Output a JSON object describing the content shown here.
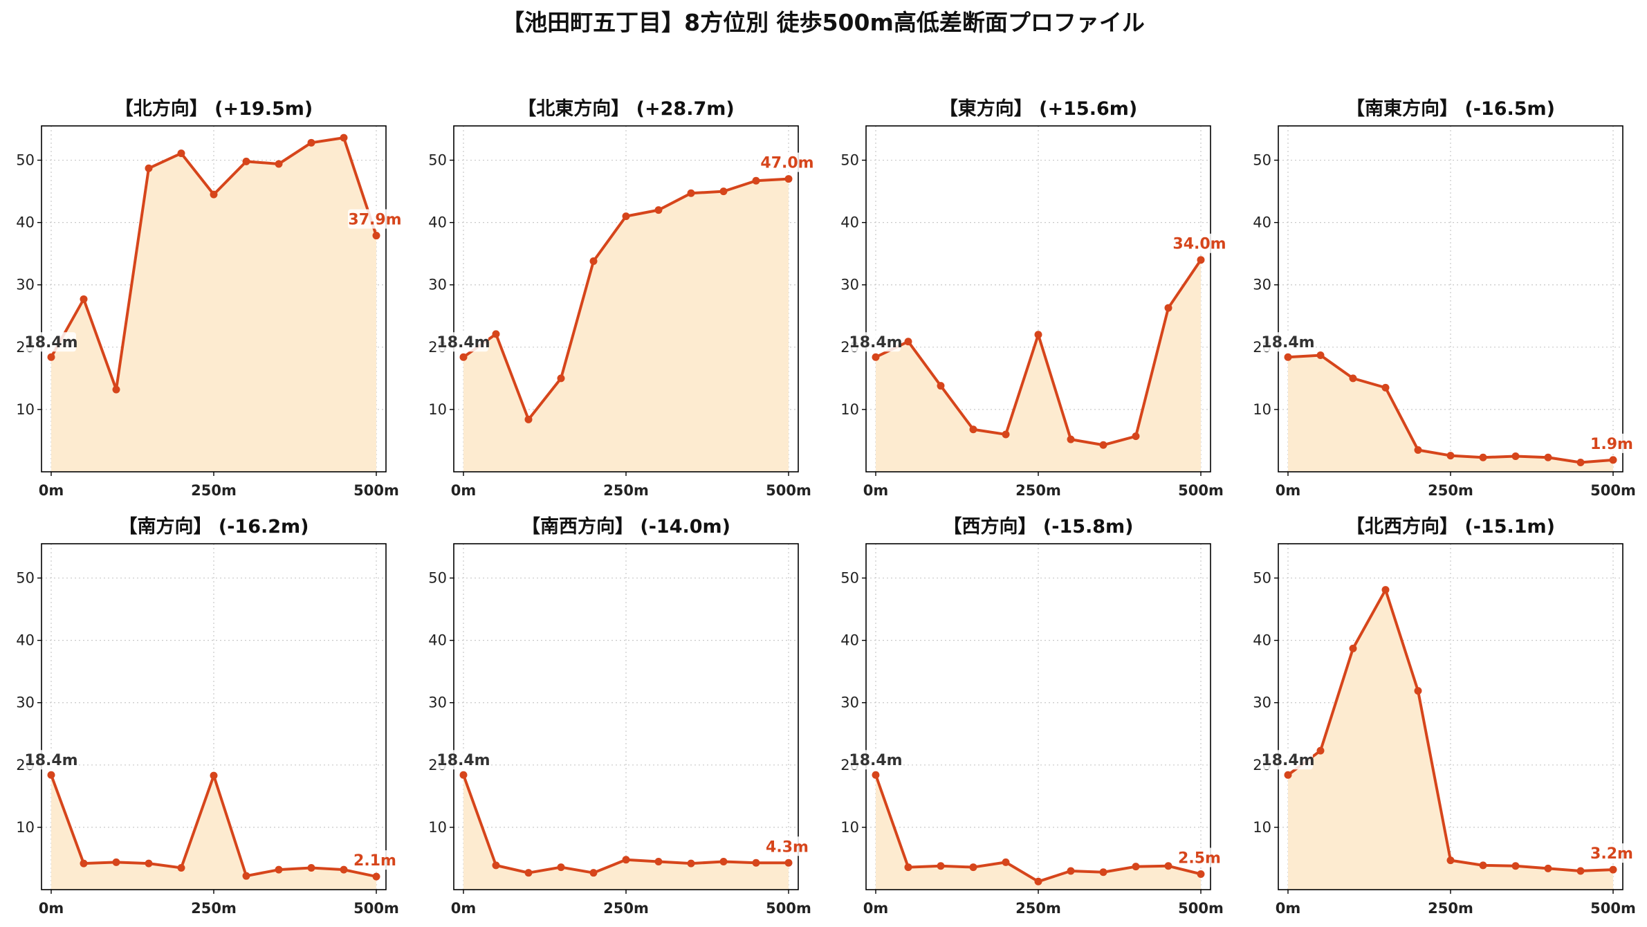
{
  "figure_title": "【池田町五丁目】8方位別 徒歩500m高低差断面プロファイル",
  "colors": {
    "line": "#d6451b",
    "fill": "#fdebd0",
    "grid": "#c8c8c8",
    "axis": "#000000",
    "start_label": "#333333",
    "end_label": "#d6451b"
  },
  "chart_data": [
    {
      "type": "area",
      "title": "【北方向】 (+19.5m)",
      "x": [
        0,
        50,
        100,
        150,
        200,
        250,
        300,
        350,
        400,
        450,
        500
      ],
      "values": [
        18.4,
        27.7,
        13.2,
        48.7,
        51.1,
        44.5,
        49.8,
        49.4,
        52.8,
        53.6,
        37.9
      ],
      "start_label": "18.4m",
      "end_label": "37.9m",
      "xticks": [
        0,
        250,
        500
      ],
      "xtick_labels": [
        "0m",
        "250m",
        "500m"
      ],
      "yticks": [
        10,
        20,
        30,
        40,
        50
      ],
      "ylim": [
        0,
        55.5
      ],
      "grid": true
    },
    {
      "type": "area",
      "title": "【北東方向】 (+28.7m)",
      "x": [
        0,
        50,
        100,
        150,
        200,
        250,
        300,
        350,
        400,
        450,
        500
      ],
      "values": [
        18.4,
        22.1,
        8.4,
        15.0,
        33.8,
        41.0,
        42.0,
        44.7,
        45.0,
        46.7,
        47.0
      ],
      "start_label": "18.4m",
      "end_label": "47.0m",
      "xticks": [
        0,
        250,
        500
      ],
      "xtick_labels": [
        "0m",
        "250m",
        "500m"
      ],
      "yticks": [
        10,
        20,
        30,
        40,
        50
      ],
      "ylim": [
        0,
        55.5
      ],
      "grid": true
    },
    {
      "type": "area",
      "title": "【東方向】 (+15.6m)",
      "x": [
        0,
        50,
        100,
        150,
        200,
        250,
        300,
        350,
        400,
        450,
        500
      ],
      "values": [
        18.4,
        20.9,
        13.8,
        6.8,
        6.0,
        22.0,
        5.2,
        4.3,
        5.7,
        26.3,
        34.0
      ],
      "start_label": "18.4m",
      "end_label": "34.0m",
      "xticks": [
        0,
        250,
        500
      ],
      "xtick_labels": [
        "0m",
        "250m",
        "500m"
      ],
      "yticks": [
        10,
        20,
        30,
        40,
        50
      ],
      "ylim": [
        0,
        55.5
      ],
      "grid": true
    },
    {
      "type": "area",
      "title": "【南東方向】 (-16.5m)",
      "x": [
        0,
        50,
        100,
        150,
        200,
        250,
        300,
        350,
        400,
        450,
        500
      ],
      "values": [
        18.4,
        18.7,
        15.0,
        13.5,
        3.5,
        2.6,
        2.3,
        2.5,
        2.3,
        1.5,
        1.9
      ],
      "start_label": "18.4m",
      "end_label": "1.9m",
      "xticks": [
        0,
        250,
        500
      ],
      "xtick_labels": [
        "0m",
        "250m",
        "500m"
      ],
      "yticks": [
        10,
        20,
        30,
        40,
        50
      ],
      "ylim": [
        0,
        55.5
      ],
      "grid": true
    },
    {
      "type": "area",
      "title": "【南方向】 (-16.2m)",
      "x": [
        0,
        50,
        100,
        150,
        200,
        250,
        300,
        350,
        400,
        450,
        500
      ],
      "values": [
        18.4,
        4.2,
        4.4,
        4.2,
        3.5,
        18.3,
        2.2,
        3.2,
        3.5,
        3.2,
        2.1
      ],
      "start_label": "18.4m",
      "end_label": "2.1m",
      "xticks": [
        0,
        250,
        500
      ],
      "xtick_labels": [
        "0m",
        "250m",
        "500m"
      ],
      "yticks": [
        10,
        20,
        30,
        40,
        50
      ],
      "ylim": [
        0,
        55.5
      ],
      "grid": true
    },
    {
      "type": "area",
      "title": "【南西方向】 (-14.0m)",
      "x": [
        0,
        50,
        100,
        150,
        200,
        250,
        300,
        350,
        400,
        450,
        500
      ],
      "values": [
        18.4,
        3.9,
        2.7,
        3.6,
        2.7,
        4.8,
        4.5,
        4.2,
        4.5,
        4.3,
        4.3
      ],
      "start_label": "18.4m",
      "end_label": "4.3m",
      "xticks": [
        0,
        250,
        500
      ],
      "xtick_labels": [
        "0m",
        "250m",
        "500m"
      ],
      "yticks": [
        10,
        20,
        30,
        40,
        50
      ],
      "ylim": [
        0,
        55.5
      ],
      "grid": true
    },
    {
      "type": "area",
      "title": "【西方向】 (-15.8m)",
      "x": [
        0,
        50,
        100,
        150,
        200,
        250,
        300,
        350,
        400,
        450,
        500
      ],
      "values": [
        18.4,
        3.6,
        3.8,
        3.6,
        4.4,
        1.3,
        3.0,
        2.8,
        3.7,
        3.8,
        2.5
      ],
      "start_label": "18.4m",
      "end_label": "2.5m",
      "xticks": [
        0,
        250,
        500
      ],
      "xtick_labels": [
        "0m",
        "250m",
        "500m"
      ],
      "yticks": [
        10,
        20,
        30,
        40,
        50
      ],
      "ylim": [
        0,
        55.5
      ],
      "grid": true
    },
    {
      "type": "area",
      "title": "【北西方向】 (-15.1m)",
      "x": [
        0,
        50,
        100,
        150,
        200,
        250,
        300,
        350,
        400,
        450,
        500
      ],
      "values": [
        18.4,
        22.3,
        38.7,
        48.1,
        31.9,
        4.7,
        3.9,
        3.8,
        3.4,
        3.0,
        3.2
      ],
      "start_label": "18.4m",
      "end_label": "3.2m",
      "xticks": [
        0,
        250,
        500
      ],
      "xtick_labels": [
        "0m",
        "250m",
        "500m"
      ],
      "yticks": [
        10,
        20,
        30,
        40,
        50
      ],
      "ylim": [
        0,
        55.5
      ],
      "grid": true
    }
  ]
}
